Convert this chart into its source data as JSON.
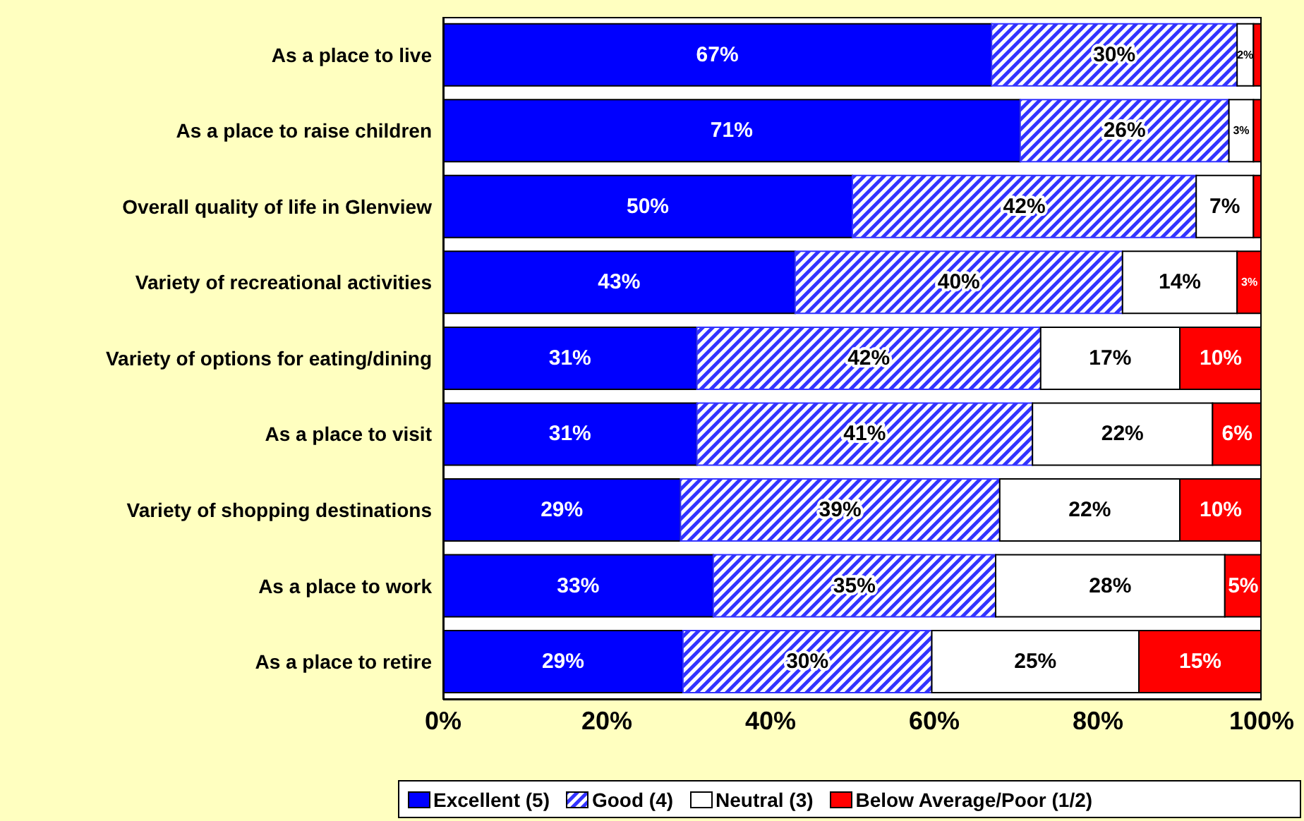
{
  "chart_data": {
    "type": "bar",
    "orientation": "horizontal",
    "stacked": true,
    "categories": [
      "As a place to live",
      "As a place to raise children",
      "Overall quality of life in Glenview",
      "Variety of recreational activities",
      "Variety of options for eating/dining",
      "As a place to visit",
      "Variety of shopping destinations",
      "As a place to work",
      "As a place to retire"
    ],
    "series": [
      {
        "name": "Excellent (5)",
        "color": "#0000ff",
        "values": [
          67,
          70.5,
          50,
          43,
          31,
          31,
          29,
          33,
          29.3
        ],
        "value_labels": [
          "67%",
          "71%",
          "50%",
          "43%",
          "31%",
          "31%",
          "29%",
          "33%",
          "29%"
        ]
      },
      {
        "name": "Good (4)",
        "color": "#3333ff",
        "values": [
          30,
          25.5,
          42,
          40,
          42,
          41,
          39,
          34.5,
          30.4
        ],
        "value_labels": [
          "30%",
          "26%",
          "42%",
          "40%",
          "42%",
          "41%",
          "39%",
          "35%",
          "30%"
        ]
      },
      {
        "name": "Neutral (3)",
        "color": "#ffffff",
        "values": [
          2,
          3,
          7,
          14,
          17,
          22,
          22,
          28,
          25.3
        ],
        "value_labels": [
          "2%",
          "3%",
          "7%",
          "14%",
          "17%",
          "22%",
          "22%",
          "28%",
          "25%"
        ]
      },
      {
        "name": "Below Average/Poor (1/2)",
        "color": "#ff0000",
        "values": [
          1,
          1,
          1,
          3,
          10,
          6,
          10,
          4.5,
          15
        ],
        "value_labels": [
          null,
          null,
          null,
          "3%",
          "10%",
          "6%",
          "10%",
          "5%",
          "15%"
        ]
      }
    ],
    "xlim": [
      0,
      100
    ],
    "xticks": [
      {
        "value": 0,
        "label": "0%"
      },
      {
        "value": 20,
        "label": "20%"
      },
      {
        "value": 40,
        "label": "40%"
      },
      {
        "value": 60,
        "label": "60%"
      },
      {
        "value": 80,
        "label": "80%"
      },
      {
        "value": 100,
        "label": "100%"
      }
    ],
    "legend": "bottom",
    "grid": false
  }
}
